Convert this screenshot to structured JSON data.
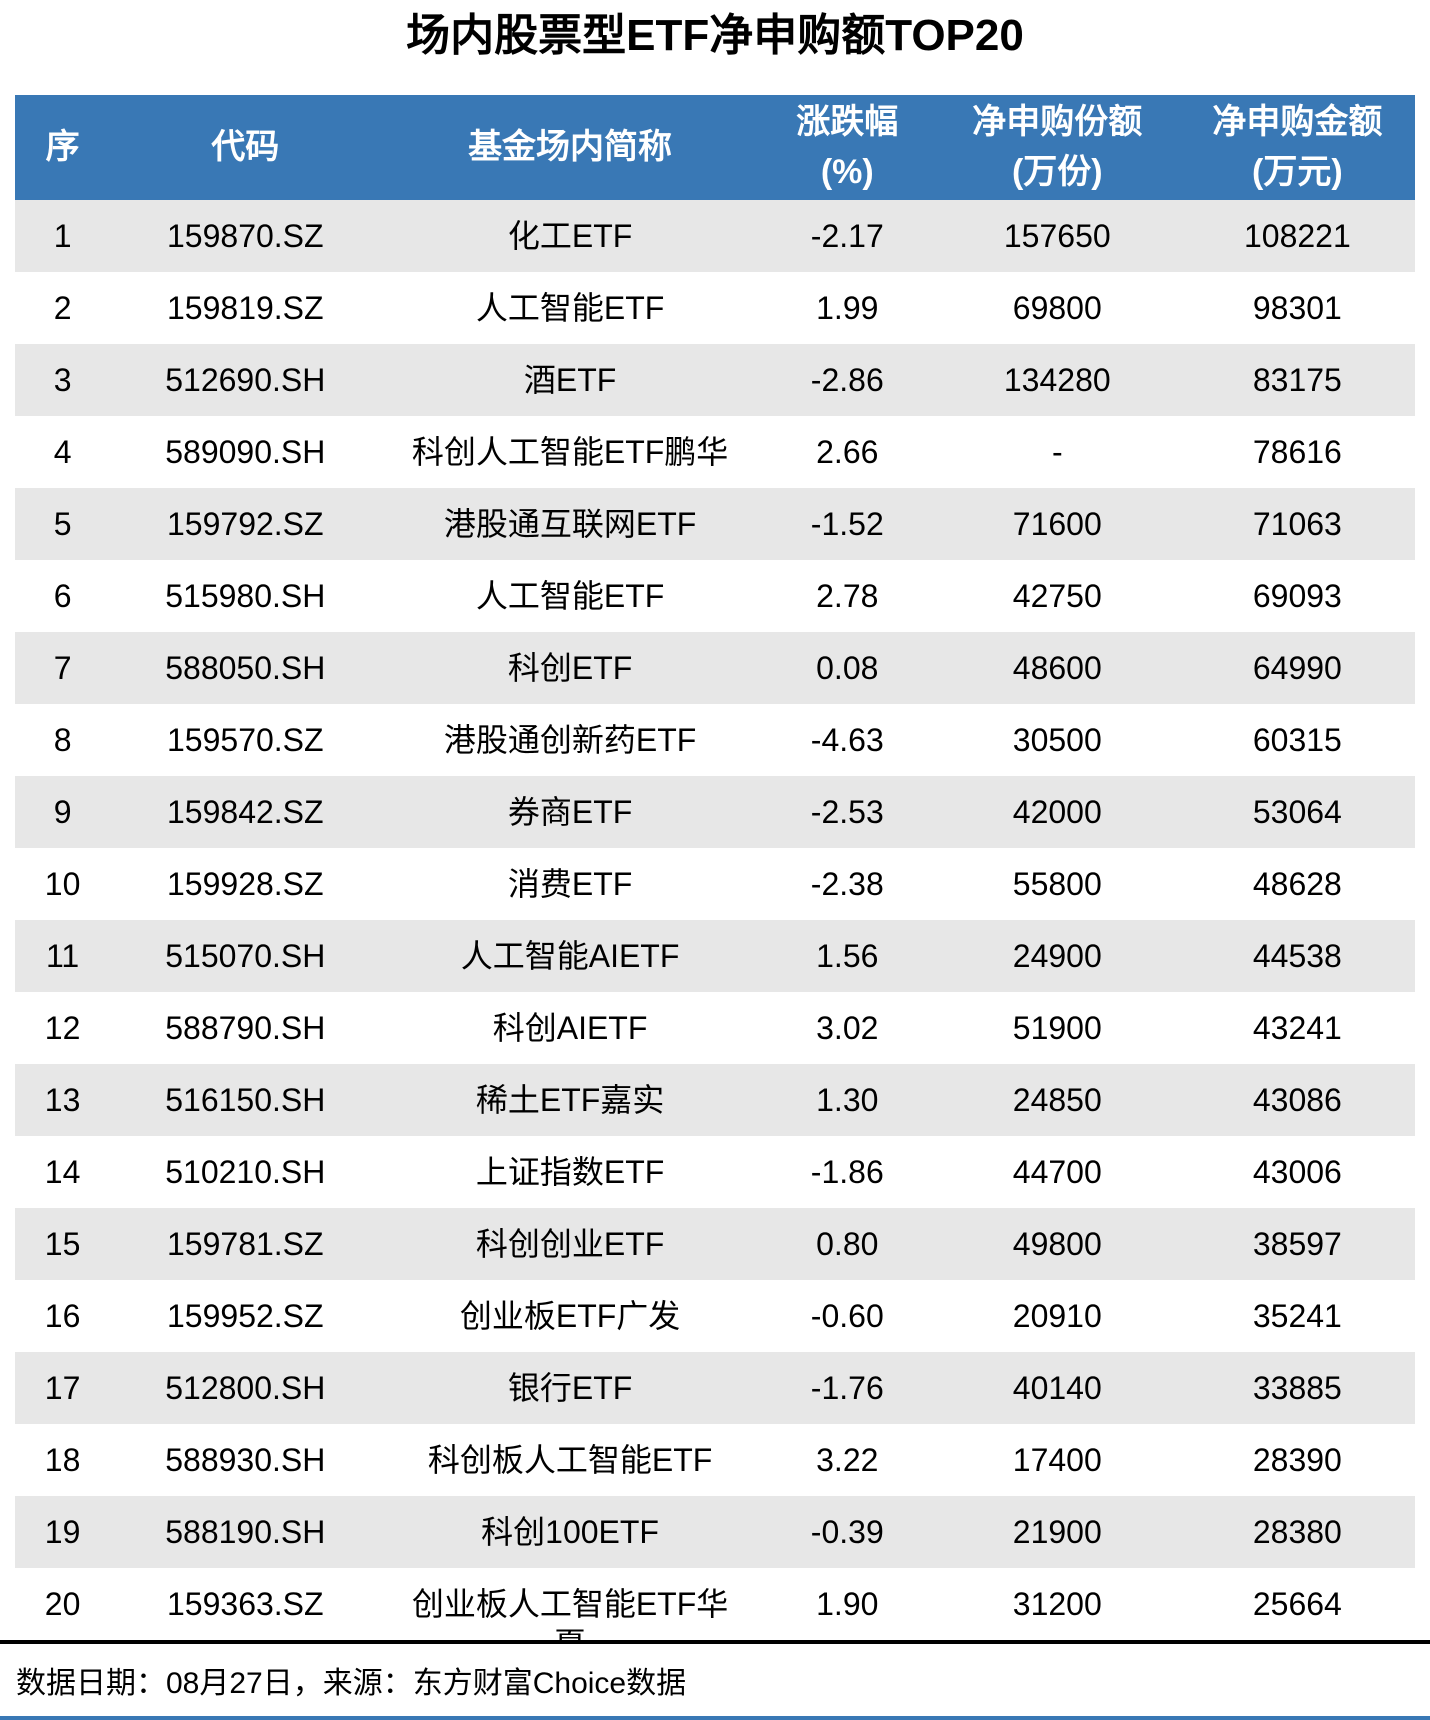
{
  "title": "场内股票型ETF净申购额TOP20",
  "table": {
    "columns": [
      {
        "label": "序",
        "label2": ""
      },
      {
        "label": "代码",
        "label2": ""
      },
      {
        "label": "基金场内简称",
        "label2": ""
      },
      {
        "label": "涨跌幅",
        "label2": "(%)"
      },
      {
        "label": "净申购份额",
        "label2": "(万份)"
      },
      {
        "label": "净申购金额",
        "label2": "(万元)"
      }
    ],
    "rows": [
      {
        "rank": "1",
        "code": "159870.SZ",
        "name": "化工ETF",
        "change": "-2.17",
        "shares": "157650",
        "amount": "108221"
      },
      {
        "rank": "2",
        "code": "159819.SZ",
        "name": "人工智能ETF",
        "change": "1.99",
        "shares": "69800",
        "amount": "98301"
      },
      {
        "rank": "3",
        "code": "512690.SH",
        "name": "酒ETF",
        "change": "-2.86",
        "shares": "134280",
        "amount": "83175"
      },
      {
        "rank": "4",
        "code": "589090.SH",
        "name": "科创人工智能ETF鹏华",
        "change": "2.66",
        "shares": "-",
        "amount": "78616"
      },
      {
        "rank": "5",
        "code": "159792.SZ",
        "name": "港股通互联网ETF",
        "change": "-1.52",
        "shares": "71600",
        "amount": "71063"
      },
      {
        "rank": "6",
        "code": "515980.SH",
        "name": "人工智能ETF",
        "change": "2.78",
        "shares": "42750",
        "amount": "69093"
      },
      {
        "rank": "7",
        "code": "588050.SH",
        "name": "科创ETF",
        "change": "0.08",
        "shares": "48600",
        "amount": "64990"
      },
      {
        "rank": "8",
        "code": "159570.SZ",
        "name": "港股通创新药ETF",
        "change": "-4.63",
        "shares": "30500",
        "amount": "60315"
      },
      {
        "rank": "9",
        "code": "159842.SZ",
        "name": "券商ETF",
        "change": "-2.53",
        "shares": "42000",
        "amount": "53064"
      },
      {
        "rank": "10",
        "code": "159928.SZ",
        "name": "消费ETF",
        "change": "-2.38",
        "shares": "55800",
        "amount": "48628"
      },
      {
        "rank": "11",
        "code": "515070.SH",
        "name": "人工智能AIETF",
        "change": "1.56",
        "shares": "24900",
        "amount": "44538"
      },
      {
        "rank": "12",
        "code": "588790.SH",
        "name": "科创AIETF",
        "change": "3.02",
        "shares": "51900",
        "amount": "43241"
      },
      {
        "rank": "13",
        "code": "516150.SH",
        "name": "稀土ETF嘉实",
        "change": "1.30",
        "shares": "24850",
        "amount": "43086"
      },
      {
        "rank": "14",
        "code": "510210.SH",
        "name": "上证指数ETF",
        "change": "-1.86",
        "shares": "44700",
        "amount": "43006"
      },
      {
        "rank": "15",
        "code": "159781.SZ",
        "name": "科创创业ETF",
        "change": "0.80",
        "shares": "49800",
        "amount": "38597"
      },
      {
        "rank": "16",
        "code": "159952.SZ",
        "name": "创业板ETF广发",
        "change": "-0.60",
        "shares": "20910",
        "amount": "35241"
      },
      {
        "rank": "17",
        "code": "512800.SH",
        "name": "银行ETF",
        "change": "-1.76",
        "shares": "40140",
        "amount": "33885"
      },
      {
        "rank": "18",
        "code": "588930.SH",
        "name": "科创板人工智能ETF",
        "change": "3.22",
        "shares": "17400",
        "amount": "28390"
      },
      {
        "rank": "19",
        "code": "588190.SH",
        "name": "科创100ETF",
        "change": "-0.39",
        "shares": "21900",
        "amount": "28380"
      },
      {
        "rank": "20",
        "code": "159363.SZ",
        "name": "创业板人工智能ETF华夏",
        "change": "1.90",
        "shares": "31200",
        "amount": "25664"
      }
    ]
  },
  "footer": {
    "note": "数据日期：08月27日，来源：东方财富Choice数据"
  },
  "colors": {
    "header_bg": "#3978B5",
    "row_alt": "#E7E7E7",
    "accent_line": "#3978B5",
    "header_text": "#FFFFFF",
    "body_text": "#000000"
  },
  "chart_data": {
    "type": "table",
    "title": "场内股票型ETF净申购额TOP20",
    "columns": [
      "序",
      "代码",
      "基金场内简称",
      "涨跌幅(%)",
      "净申购份额(万份)",
      "净申购金额(万元)"
    ],
    "rows": [
      [
        1,
        "159870.SZ",
        "化工ETF",
        -2.17,
        157650,
        108221
      ],
      [
        2,
        "159819.SZ",
        "人工智能ETF",
        1.99,
        69800,
        98301
      ],
      [
        3,
        "512690.SH",
        "酒ETF",
        -2.86,
        134280,
        83175
      ],
      [
        4,
        "589090.SH",
        "科创人工智能ETF鹏华",
        2.66,
        null,
        78616
      ],
      [
        5,
        "159792.SZ",
        "港股通互联网ETF",
        -1.52,
        71600,
        71063
      ],
      [
        6,
        "515980.SH",
        "人工智能ETF",
        2.78,
        42750,
        69093
      ],
      [
        7,
        "588050.SH",
        "科创ETF",
        0.08,
        48600,
        64990
      ],
      [
        8,
        "159570.SZ",
        "港股通创新药ETF",
        -4.63,
        30500,
        60315
      ],
      [
        9,
        "159842.SZ",
        "券商ETF",
        -2.53,
        42000,
        53064
      ],
      [
        10,
        "159928.SZ",
        "消费ETF",
        -2.38,
        55800,
        48628
      ],
      [
        11,
        "515070.SH",
        "人工智能AIETF",
        1.56,
        24900,
        44538
      ],
      [
        12,
        "588790.SH",
        "科创AIETF",
        3.02,
        51900,
        43241
      ],
      [
        13,
        "516150.SH",
        "稀土ETF嘉实",
        1.3,
        24850,
        43086
      ],
      [
        14,
        "510210.SH",
        "上证指数ETF",
        -1.86,
        44700,
        43006
      ],
      [
        15,
        "159781.SZ",
        "科创创业ETF",
        0.8,
        49800,
        38597
      ],
      [
        16,
        "159952.SZ",
        "创业板ETF广发",
        -0.6,
        20910,
        35241
      ],
      [
        17,
        "512800.SH",
        "银行ETF",
        -1.76,
        40140,
        33885
      ],
      [
        18,
        "588930.SH",
        "科创板人工智能ETF",
        3.22,
        17400,
        28390
      ],
      [
        19,
        "588190.SH",
        "科创100ETF",
        -0.39,
        21900,
        28380
      ],
      [
        20,
        "159363.SZ",
        "创业板人工智能ETF华夏",
        1.9,
        31200,
        25664
      ]
    ],
    "source_note": "数据日期：08月27日，来源：东方财富Choice数据",
    "layout": {
      "striped": true,
      "stripe_on": "odd-rows",
      "header_style": "blue-bar",
      "alignment": "center"
    }
  }
}
